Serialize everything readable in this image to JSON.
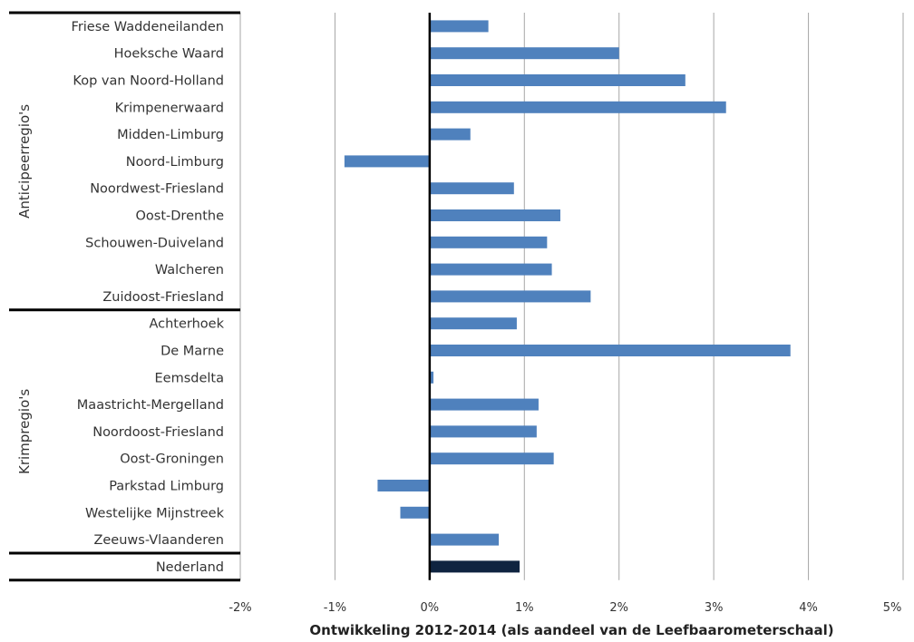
{
  "chart_data": {
    "type": "bar",
    "orientation": "horizontal",
    "xlabel": "Ontwikkeling 2012-2014 (als aandeel van de Leefbaarometerschaal)",
    "xlim": [
      -0.02,
      0.05
    ],
    "xticks": [
      -0.02,
      -0.01,
      0,
      0.01,
      0.02,
      0.03,
      0.04,
      0.05
    ],
    "xtick_labels": [
      "-2%",
      "-1%",
      "0%",
      "1%",
      "2%",
      "3%",
      "4%",
      "5%"
    ],
    "grid": "vertical",
    "legend": "none",
    "groups": [
      {
        "name": "Anticipeerregio's",
        "categories": [
          "Friese Waddeneilanden",
          "Hoeksche Waard",
          "Kop van Noord-Holland",
          "Krimpenerwaard",
          "Midden-Limburg",
          "Noord-Limburg",
          "Noordwest-Friesland",
          "Oost-Drenthe",
          "Schouwen-Duiveland",
          "Walcheren",
          "Zuidoost-Friesland"
        ],
        "values": [
          0.0062,
          0.02,
          0.027,
          0.0313,
          0.0043,
          -0.009,
          0.0089,
          0.0138,
          0.0124,
          0.0129,
          0.017
        ]
      },
      {
        "name": "Krimpregio's",
        "categories": [
          "Achterhoek",
          "De Marne",
          "Eemsdelta",
          "Maastricht-Mergelland",
          "Noordoost-Friesland",
          "Oost-Groningen",
          "Parkstad Limburg",
          "Westelijke Mijnstreek",
          "Zeeuws-Vlaanderen"
        ],
        "values": [
          0.0092,
          0.0381,
          0.0004,
          0.0115,
          0.0113,
          0.0131,
          -0.0055,
          -0.0031,
          0.0073
        ]
      },
      {
        "name": "",
        "categories": [
          "Nederland"
        ],
        "values": [
          0.0095
        ]
      }
    ],
    "colors": {
      "bar": "#4f81bd",
      "highlight_bar": "#0f2440",
      "zero_line": "#000000",
      "grid": "#a6a6a6",
      "separator": "#000000"
    }
  }
}
